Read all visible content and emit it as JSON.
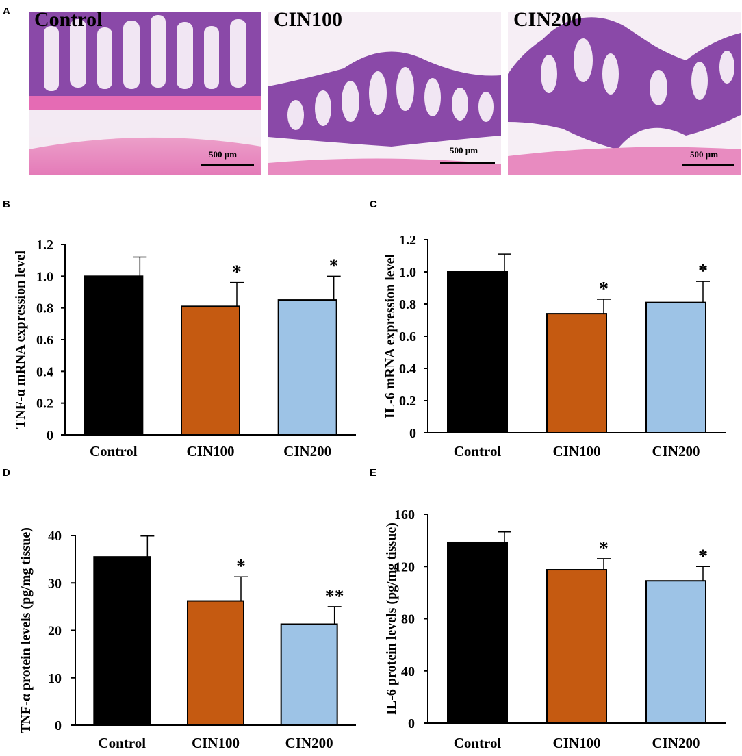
{
  "figure": {
    "panel_letters": [
      "A",
      "B",
      "C",
      "D",
      "E"
    ],
    "histology": [
      {
        "label": "Control",
        "scale": "500 µm"
      },
      {
        "label": "CIN100",
        "scale": "500 µm"
      },
      {
        "label": "CIN200",
        "scale": "500 µm"
      }
    ],
    "colors": {
      "Control": "#000000",
      "CIN100": "#c55a11",
      "CIN200": "#9dc3e6",
      "tissue_purple": "#7a3d9a",
      "tissue_pink": "#e8a0c8"
    }
  },
  "chart_data": [
    {
      "panel": "B",
      "type": "bar",
      "categories": [
        "Control",
        "CIN100",
        "CIN200"
      ],
      "values": [
        1.0,
        0.81,
        0.85
      ],
      "errors": [
        0.12,
        0.15,
        0.15
      ],
      "significance": [
        "",
        "*",
        "*"
      ],
      "ylabel": "TNF-α mRNA expression level",
      "ylim": [
        0,
        1.2
      ],
      "yticks": [
        "0",
        "0.2",
        "0.4",
        "0.6",
        "0.8",
        "1.0",
        "1.2"
      ],
      "ytick_values": [
        0,
        0.2,
        0.4,
        0.6,
        0.8,
        1.0,
        1.2
      ]
    },
    {
      "panel": "C",
      "type": "bar",
      "categories": [
        "Control",
        "CIN100",
        "CIN200"
      ],
      "values": [
        1.0,
        0.74,
        0.81
      ],
      "errors": [
        0.11,
        0.09,
        0.13
      ],
      "significance": [
        "",
        "*",
        "*"
      ],
      "ylabel": "IL-6 mRNA expression level",
      "ylim": [
        0,
        1.2
      ],
      "yticks": [
        "0",
        "0.2",
        "0.4",
        "0.6",
        "0.8",
        "1.0",
        "1.2"
      ],
      "ytick_values": [
        0,
        0.2,
        0.4,
        0.6,
        0.8,
        1.0,
        1.2
      ]
    },
    {
      "panel": "D",
      "type": "bar",
      "categories": [
        "Control",
        "CIN100",
        "CIN200"
      ],
      "values": [
        35.5,
        26.2,
        21.3
      ],
      "errors": [
        4.4,
        5.1,
        3.7
      ],
      "significance": [
        "",
        "*",
        "**"
      ],
      "ylabel": "TNF-α protein levels (pg/mg tissue)",
      "ylim": [
        0,
        40
      ],
      "yticks": [
        "0",
        "10",
        "20",
        "30",
        "40"
      ],
      "ytick_values": [
        0,
        10,
        20,
        30,
        40
      ]
    },
    {
      "panel": "E",
      "type": "bar",
      "categories": [
        "Control",
        "CIN100",
        "CIN200"
      ],
      "values": [
        138.5,
        117.5,
        109.0
      ],
      "errors": [
        8.0,
        8.5,
        11.0
      ],
      "significance": [
        "",
        "*",
        "*"
      ],
      "ylabel": "IL-6 protein levels (pg/mg tissue)",
      "ylim": [
        0,
        160
      ],
      "yticks": [
        "0",
        "40",
        "80",
        "120",
        "160"
      ],
      "ytick_values": [
        0,
        40,
        80,
        120,
        160
      ]
    }
  ]
}
